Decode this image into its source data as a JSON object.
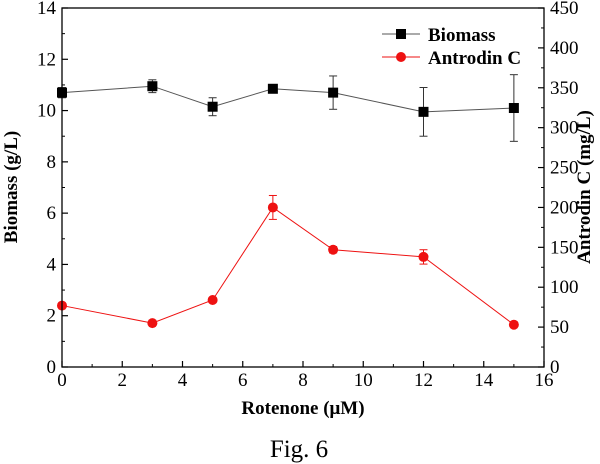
{
  "chart_data": {
    "type": "line",
    "title": "",
    "caption": "Fig. 6",
    "xlabel": "Rotenone (μM)",
    "ylabel_left": "Biomass (g/L)",
    "ylabel_right": "Antrodin C (mg/L)",
    "xlim": [
      0,
      16
    ],
    "ylim_left": [
      0,
      14
    ],
    "ylim_right": [
      0,
      450
    ],
    "x_ticks": [
      0,
      2,
      4,
      6,
      8,
      10,
      12,
      14,
      16
    ],
    "y_left_ticks": [
      0,
      2,
      4,
      6,
      8,
      10,
      12,
      14
    ],
    "y_right_ticks": [
      0,
      50,
      100,
      150,
      200,
      250,
      300,
      350,
      400,
      450
    ],
    "legend_position": "top-right",
    "series": [
      {
        "name": "Biomass",
        "axis": "left",
        "marker": "square",
        "color": "#000000",
        "line_color": "#555555",
        "x": [
          0,
          3,
          5,
          7,
          9,
          12,
          15
        ],
        "values": [
          10.7,
          10.95,
          10.15,
          10.85,
          10.7,
          9.95,
          10.1
        ],
        "errors": [
          0.2,
          0.25,
          0.35,
          0.15,
          0.65,
          0.95,
          1.3
        ]
      },
      {
        "name": "Antrodin C",
        "axis": "right",
        "marker": "circle",
        "color": "#ee1111",
        "line_color": "#ee1111",
        "x": [
          0,
          3,
          5,
          7,
          9,
          12,
          15
        ],
        "values": [
          77,
          55,
          84,
          200,
          147,
          138,
          53
        ],
        "errors": [
          2,
          2,
          3,
          15,
          4,
          9,
          2
        ]
      }
    ]
  }
}
